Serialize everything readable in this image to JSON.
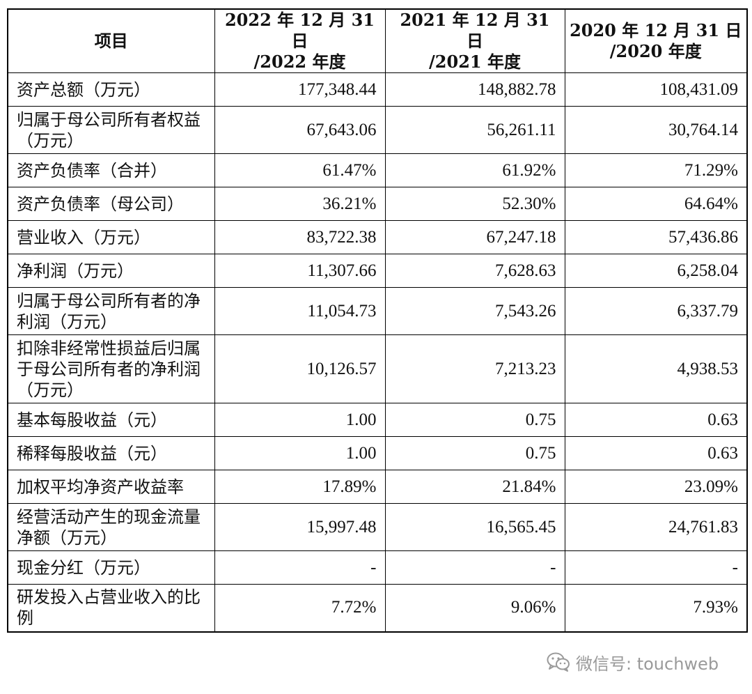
{
  "table": {
    "headers": [
      {
        "line1": "项目",
        "line2": ""
      },
      {
        "line1": "2022 年 12 月 31 日",
        "line2": "/2022 年度"
      },
      {
        "line1": "2021 年 12 月 31 日",
        "line2": "/2021 年度"
      },
      {
        "line1": "2020 年 12 月 31 日",
        "line2": "/2020 年度"
      }
    ],
    "rows": [
      {
        "label": "资产总额（万元）",
        "v2022": "177,348.44",
        "v2021": "148,882.78",
        "v2020": "108,431.09"
      },
      {
        "label": "归属于母公司所有者权益（万元）",
        "v2022": "67,643.06",
        "v2021": "56,261.11",
        "v2020": "30,764.14"
      },
      {
        "label": "资产负债率（合并）",
        "v2022": "61.47%",
        "v2021": "61.92%",
        "v2020": "71.29%"
      },
      {
        "label": "资产负债率（母公司）",
        "v2022": "36.21%",
        "v2021": "52.30%",
        "v2020": "64.64%"
      },
      {
        "label": "营业收入（万元）",
        "v2022": "83,722.38",
        "v2021": "67,247.18",
        "v2020": "57,436.86"
      },
      {
        "label": "净利润（万元）",
        "v2022": "11,307.66",
        "v2021": "7,628.63",
        "v2020": "6,258.04"
      },
      {
        "label": "归属于母公司所有者的净利润（万元）",
        "v2022": "11,054.73",
        "v2021": "7,543.26",
        "v2020": "6,337.79"
      },
      {
        "label": "扣除非经常性损益后归属于母公司所有者的净利润（万元）",
        "v2022": "10,126.57",
        "v2021": "7,213.23",
        "v2020": "4,938.53"
      },
      {
        "label": "基本每股收益（元）",
        "v2022": "1.00",
        "v2021": "0.75",
        "v2020": "0.63"
      },
      {
        "label": "稀释每股收益（元）",
        "v2022": "1.00",
        "v2021": "0.75",
        "v2020": "0.63"
      },
      {
        "label": "加权平均净资产收益率",
        "v2022": "17.89%",
        "v2021": "21.84%",
        "v2020": "23.09%"
      },
      {
        "label": "经营活动产生的现金流量净额（万元）",
        "v2022": "15,997.48",
        "v2021": "16,565.45",
        "v2020": "24,761.83"
      },
      {
        "label": "现金分红（万元）",
        "v2022": "-",
        "v2021": "-",
        "v2020": "-"
      },
      {
        "label": "研发投入占营业收入的比例",
        "v2022": "7.72%",
        "v2021": "9.06%",
        "v2020": "7.93%"
      }
    ]
  },
  "watermark": {
    "icon": "wechat-icon",
    "text": "微信号: touchweb",
    "color": "#9a9a9a"
  }
}
